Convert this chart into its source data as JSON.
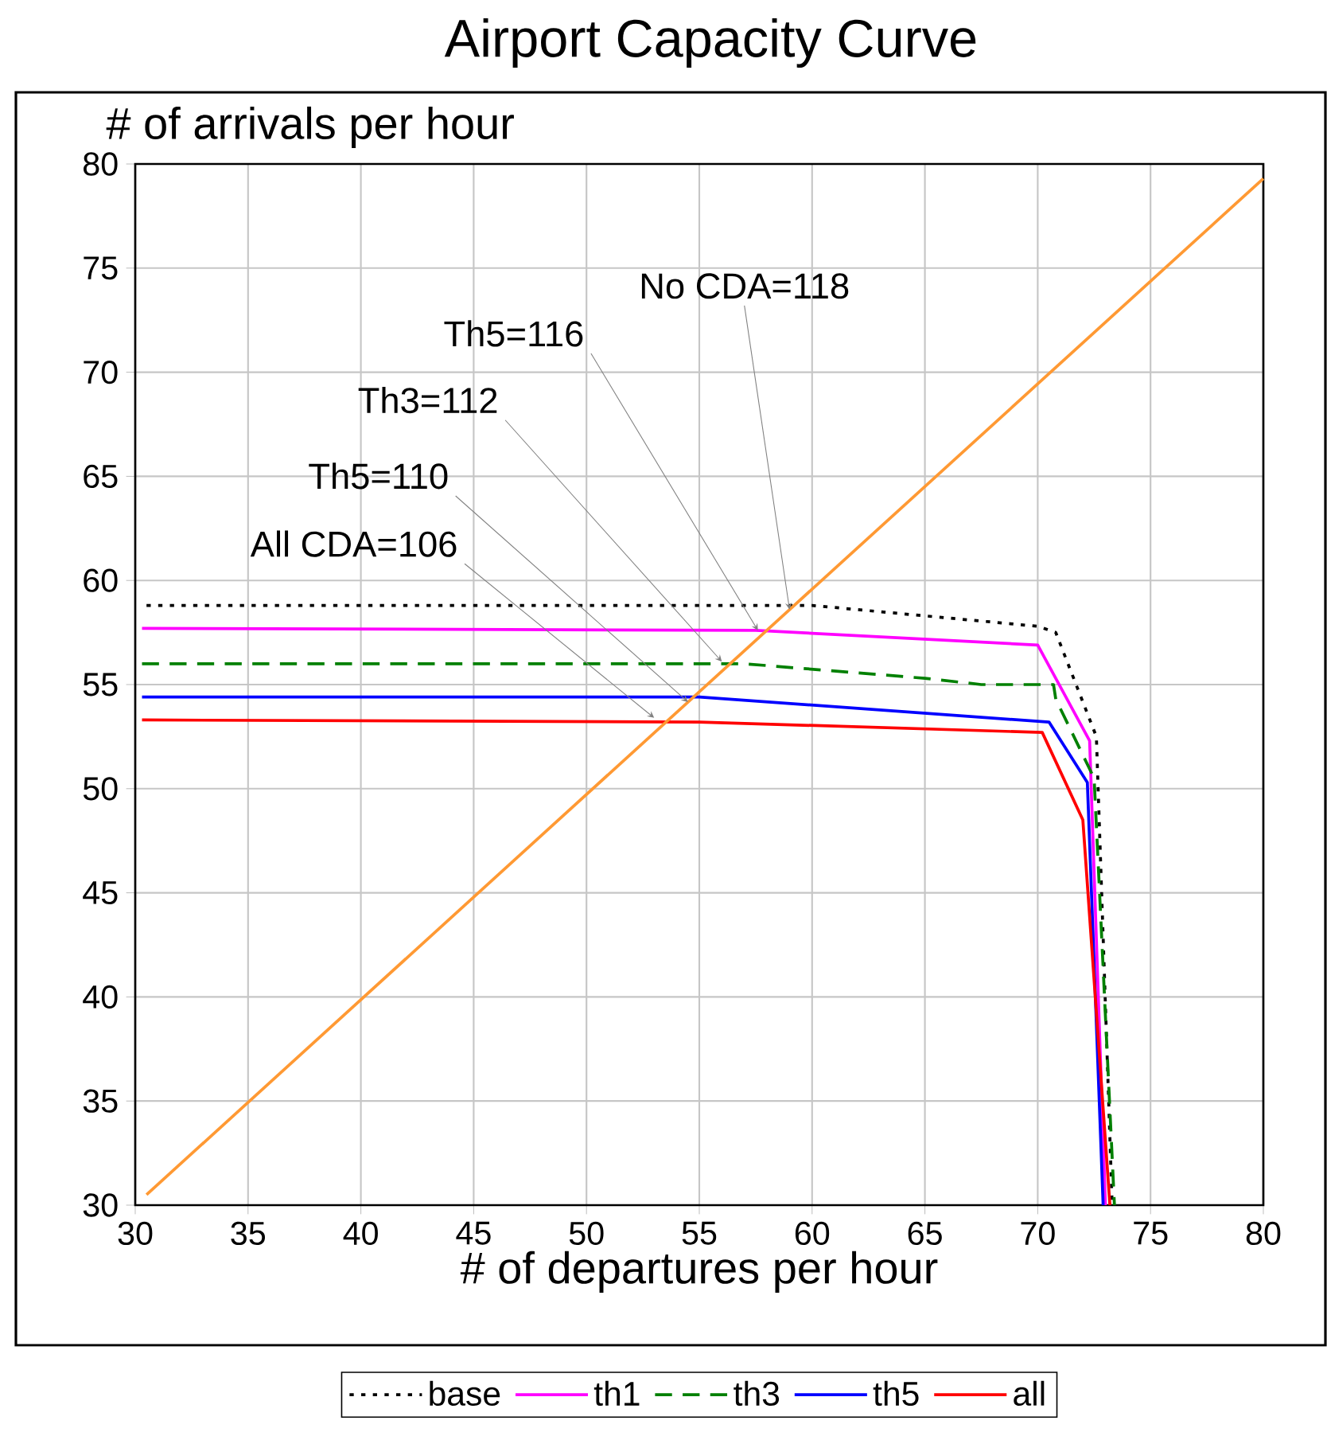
{
  "chart_data": {
    "type": "line",
    "title": "Airport Capacity Curve",
    "xlabel": "# of departures per hour",
    "ylabel": "# of arrivals per hour",
    "xlim": [
      30,
      80
    ],
    "ylim": [
      30,
      80
    ],
    "xticks": [
      30,
      35,
      40,
      45,
      50,
      55,
      60,
      65,
      70,
      75,
      80
    ],
    "yticks": [
      30,
      35,
      40,
      45,
      50,
      55,
      60,
      65,
      70,
      75,
      80
    ],
    "grid": true,
    "legend": "bottom",
    "series": [
      {
        "name": "base",
        "color": "#000000",
        "line_style": "dotted",
        "x": [
          30.5,
          60,
          70,
          70.8,
          72.6,
          73.3
        ],
        "values": [
          58.8,
          58.8,
          57.8,
          57.5,
          52.5,
          30
        ]
      },
      {
        "name": "th1",
        "color": "#ff00ff",
        "x": [
          30.3,
          57.5,
          70,
          72.3,
          73
        ],
        "values": [
          57.7,
          57.6,
          56.9,
          52.3,
          30
        ]
      },
      {
        "name": "th3",
        "color": "#008000",
        "line_style": "dashed",
        "x": [
          30.3,
          57,
          65,
          67.5,
          70.7,
          70.8,
          72.5,
          73.4
        ],
        "values": [
          56,
          56,
          55.3,
          55,
          55,
          54.3,
          50.5,
          30
        ]
      },
      {
        "name": "th5",
        "color": "#0000ff",
        "x": [
          30.3,
          55,
          70.5,
          72.2,
          72.9
        ],
        "values": [
          54.4,
          54.4,
          53.2,
          50.3,
          30
        ]
      },
      {
        "name": "all",
        "color": "#ff0000",
        "x": [
          30.3,
          55,
          70.2,
          72,
          73.2
        ],
        "values": [
          53.3,
          53.2,
          52.7,
          48.5,
          30
        ]
      },
      {
        "color": "#ff9933",
        "x": [
          30.5,
          80
        ],
        "values": [
          30.5,
          79.3
        ]
      }
    ],
    "annotations": [
      {
        "text": "All CDA=106",
        "x": 53,
        "y": 53.4
      },
      {
        "text": "Th5=110",
        "x": 54.5,
        "y": 54.16
      },
      {
        "text": "Th3=112",
        "x": 56,
        "y": 56.1
      },
      {
        "text": "Th5=116",
        "x": 57.6,
        "y": 57.6
      },
      {
        "text": "No CDA=118",
        "x": 59,
        "y": 58.6
      }
    ]
  }
}
